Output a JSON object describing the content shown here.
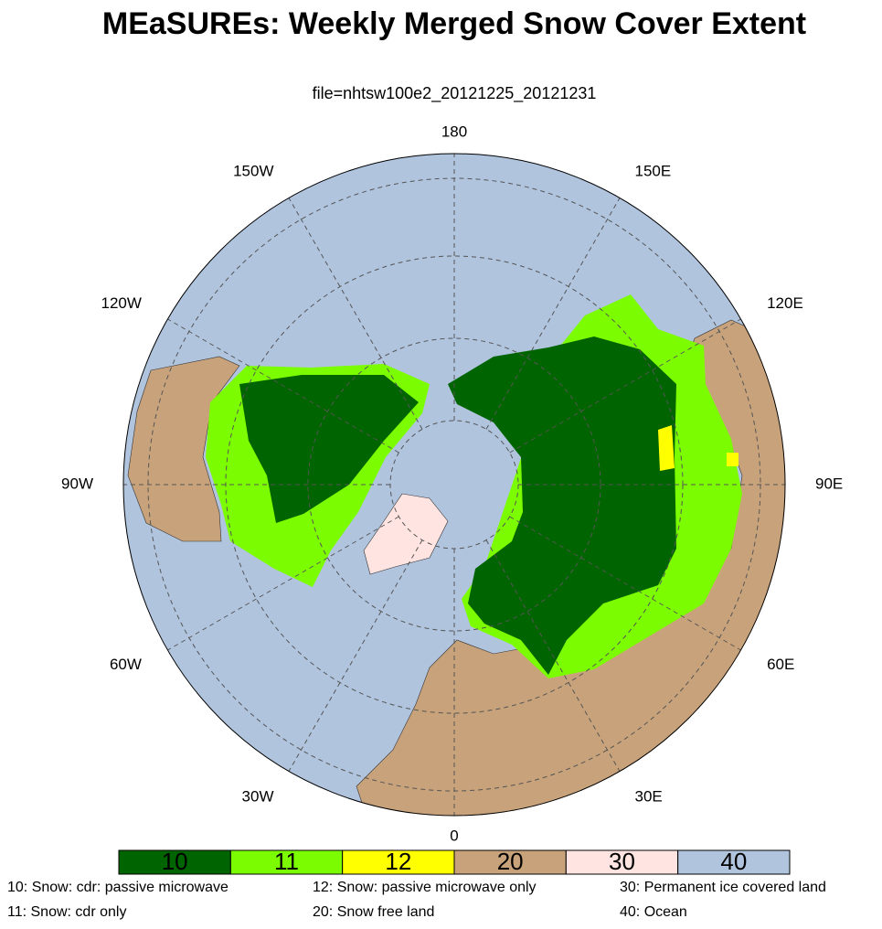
{
  "title": "MEaSUREs: Weekly Merged Snow Cover Extent",
  "subtitle": "file=nhtsw100e2_20121225_20121231",
  "longitude_labels": [
    "180",
    "150E",
    "120E",
    "90E",
    "60E",
    "30E",
    "0",
    "30W",
    "60W",
    "90W",
    "120W",
    "150W"
  ],
  "colorbar": [
    {
      "label": "10",
      "color": "#006400"
    },
    {
      "label": "11",
      "color": "#7cfc00"
    },
    {
      "label": "12",
      "color": "#ffff00"
    },
    {
      "label": "20",
      "color": "#c8a27a"
    },
    {
      "label": "30",
      "color": "#ffe4e1"
    },
    {
      "label": "40",
      "color": "#b0c4de"
    }
  ],
  "legend": [
    "10: Snow: cdr: passive microwave",
    "11: Snow: cdr only",
    "12: Snow: passive microwave only",
    "20: Snow free land",
    "30: Permanent ice covered land",
    "40: Ocean"
  ]
}
